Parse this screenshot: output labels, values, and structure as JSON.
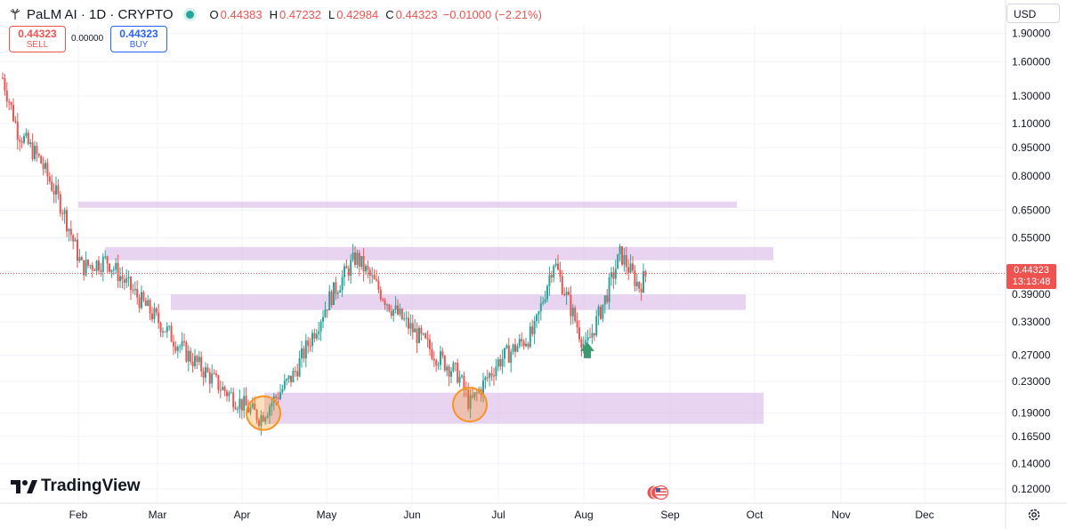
{
  "header": {
    "symbol": "PaLM AI · 1D · CRYPTO",
    "o_label": "O",
    "o_value": "0.44383",
    "h_label": "H",
    "h_value": "0.47232",
    "l_label": "L",
    "l_value": "0.42984",
    "c_label": "C",
    "c_value": "0.44323",
    "change": "−0.01000 (−2.21%)"
  },
  "trade": {
    "sell_price": "0.44323",
    "sell_label": "SELL",
    "spread": "0.00000",
    "buy_price": "0.44323",
    "buy_label": "BUY"
  },
  "currency": "USD",
  "brand": "TradingView",
  "price_tag": {
    "price": "0.44323",
    "countdown": "13:13:48"
  },
  "colors": {
    "up": "#26a69a",
    "down": "#ef5350",
    "zone": "#d9b8e8",
    "circle": "#f7931e",
    "arrow": "#3d9970"
  },
  "icons": [
    "tradingview-logo-icon",
    "palm-ai-logo-icon",
    "market-status-icon",
    "us-flag-icon",
    "gear-icon"
  ],
  "chart_data": {
    "type": "candlestick",
    "scale": "log",
    "y_ticks": [
      "1.90000",
      "1.60000",
      "1.30000",
      "1.10000",
      "0.95000",
      "0.80000",
      "0.65000",
      "0.55000",
      "0.39000",
      "0.33000",
      "0.27000",
      "0.23000",
      "0.19000",
      "0.16500",
      "0.14000",
      "0.12000"
    ],
    "x_ticks": [
      "Feb",
      "Mar",
      "Apr",
      "May",
      "Jun",
      "Jul",
      "Aug",
      "Sep",
      "Oct",
      "Nov",
      "Dec"
    ],
    "ylim": [
      0.11,
      2.0
    ],
    "last_price": 0.44323,
    "path": [
      [
        "Jan",
        1.45
      ],
      [
        "Jan",
        1.05
      ],
      [
        "Jan",
        0.88
      ],
      [
        "Jan",
        0.66
      ],
      [
        "Feb",
        0.46
      ],
      [
        "Feb",
        0.48
      ],
      [
        "Mar",
        0.36
      ],
      [
        "Mar",
        0.28
      ],
      [
        "Apr",
        0.22
      ],
      [
        "Apr",
        0.185
      ],
      [
        "Apr",
        0.24
      ],
      [
        "May",
        0.38
      ],
      [
        "May",
        0.49
      ],
      [
        "May",
        0.36
      ],
      [
        "Jun",
        0.27
      ],
      [
        "Jun",
        0.24
      ],
      [
        "Jun",
        0.2
      ],
      [
        "Jul",
        0.26
      ],
      [
        "Jul",
        0.31
      ],
      [
        "Jul",
        0.48
      ],
      [
        "Aug",
        0.28
      ],
      [
        "Aug",
        0.38
      ],
      [
        "Aug",
        0.5
      ],
      [
        "Aug",
        0.41
      ],
      [
        "Aug",
        0.44323
      ]
    ],
    "zones": [
      {
        "from": 0.66,
        "to": 0.685
      },
      {
        "from": 0.48,
        "to": 0.52
      },
      {
        "from": 0.355,
        "to": 0.39
      },
      {
        "from": 0.178,
        "to": 0.215
      }
    ],
    "annotations": [
      {
        "type": "circle",
        "date": "Apr",
        "price": 0.19
      },
      {
        "type": "circle",
        "date": "Jun",
        "price": 0.2
      },
      {
        "type": "arrow-up",
        "date": "Aug",
        "price": 0.265
      }
    ]
  }
}
